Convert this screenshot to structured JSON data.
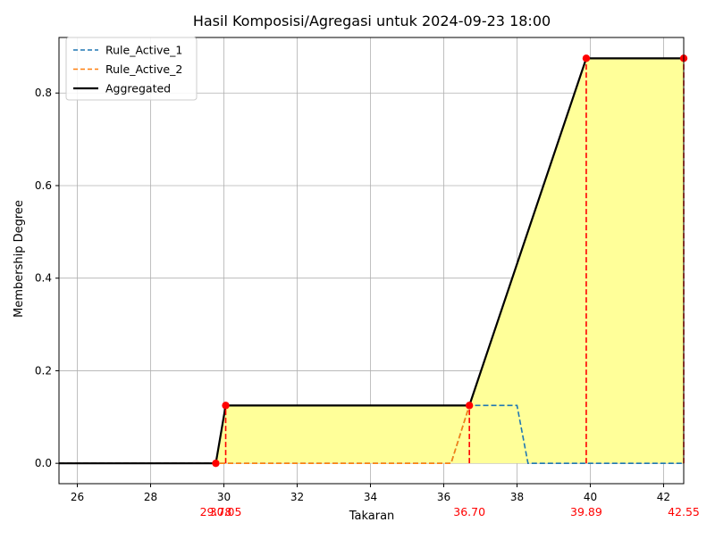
{
  "chart_data": {
    "type": "line",
    "title": "Hasil Komposisi/Agregasi untuk 2024-09-23 18:00",
    "xlabel": "Takaran",
    "ylabel": "Membership Degree",
    "xlim": [
      25.5,
      42.55
    ],
    "ylim": [
      -0.044,
      0.92
    ],
    "x_ticks": [
      26,
      28,
      30,
      32,
      34,
      36,
      38,
      40,
      42
    ],
    "y_ticks": [
      0.0,
      0.2,
      0.4,
      0.6,
      0.8
    ],
    "y_tick_labels": [
      "0.0",
      "0.2",
      "0.4",
      "0.6",
      "0.8"
    ],
    "grid": true,
    "legend_position": "top-left",
    "series": [
      {
        "name": "Rule_Active_1",
        "style": "dashed",
        "color": "#1f77b4",
        "x": [
          25.5,
          36.2,
          36.7,
          38.0,
          38.3,
          42.55
        ],
        "y": [
          0,
          0,
          0.125,
          0.125,
          0,
          0
        ]
      },
      {
        "name": "Rule_Active_2",
        "style": "dashed",
        "color": "#ff7f0e",
        "x": [
          25.5,
          36.2,
          36.7,
          39.89,
          42.55
        ],
        "y": [
          0,
          0,
          0.125,
          0.875,
          0.875
        ]
      },
      {
        "name": "Aggregated",
        "style": "solid",
        "color": "#000000",
        "x": [
          25.5,
          29.78,
          30.05,
          36.7,
          39.89,
          42.55
        ],
        "y": [
          0,
          0,
          0.125,
          0.125,
          0.875,
          0.875
        ]
      }
    ],
    "fill_color": "#ffff99",
    "markers": {
      "color": "#ff0000",
      "points": [
        {
          "x": 29.78,
          "y": 0,
          "label": "29.78"
        },
        {
          "x": 30.05,
          "y": 0.125,
          "label": "30.05"
        },
        {
          "x": 36.7,
          "y": 0.125,
          "label": "36.70"
        },
        {
          "x": 39.89,
          "y": 0.875,
          "label": "39.89"
        },
        {
          "x": 42.55,
          "y": 0.875,
          "label": "42.55"
        }
      ]
    }
  }
}
